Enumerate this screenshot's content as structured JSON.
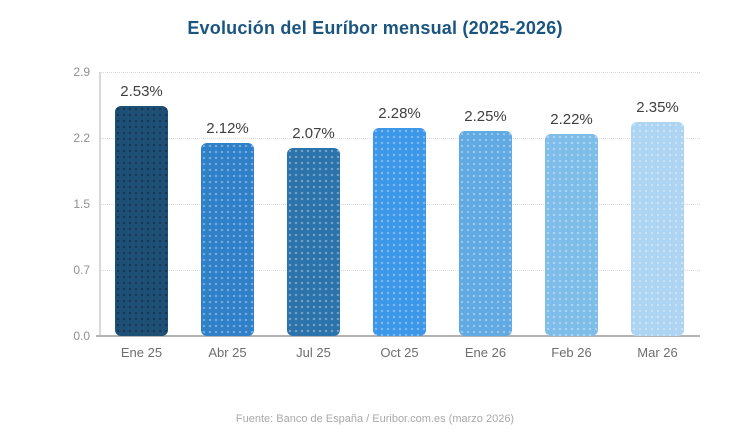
{
  "chart_data": {
    "type": "bar",
    "title": "Evolución del Euríbor mensual (2025-2026)",
    "categories": [
      "Ene 25",
      "Abr 25",
      "Jul 25",
      "Oct 25",
      "Ene 26",
      "Feb 26",
      "Mar 26"
    ],
    "values": [
      2.53,
      2.12,
      2.07,
      2.28,
      2.25,
      2.22,
      2.35
    ],
    "value_labels": [
      "2.53%",
      "2.12%",
      "2.07%",
      "2.28%",
      "2.25%",
      "2.22%",
      "2.35%"
    ],
    "bar_colors": [
      "#1e4f75",
      "#2f80c8",
      "#2d73ab",
      "#3d97e9",
      "#61a9e3",
      "#7fbde9",
      "#add4f3"
    ],
    "bar_dot_styles": [
      "dark",
      "light",
      "light",
      "light",
      "light",
      "light",
      "light"
    ],
    "xlabel": "",
    "ylabel": "",
    "ylim": [
      0,
      2.9
    ],
    "ytick_labels": [
      "2.9",
      "2.2",
      "1.5",
      "0.7",
      "0.0"
    ],
    "grid": true,
    "legend": false,
    "source": "Fuente: Banco de España / Euribor.com.es (marzo 2026)"
  },
  "colors": {
    "title": "#1a5580",
    "ytick": "#909090",
    "xtick": "#6e6e6e",
    "value_label": "#3f3f3f",
    "gridline": "#d9d9d9",
    "baseline": "#b2b2b2",
    "axis_line": "#d9d9d9",
    "background": "#ffffff",
    "footer": "#a9a9a9"
  }
}
